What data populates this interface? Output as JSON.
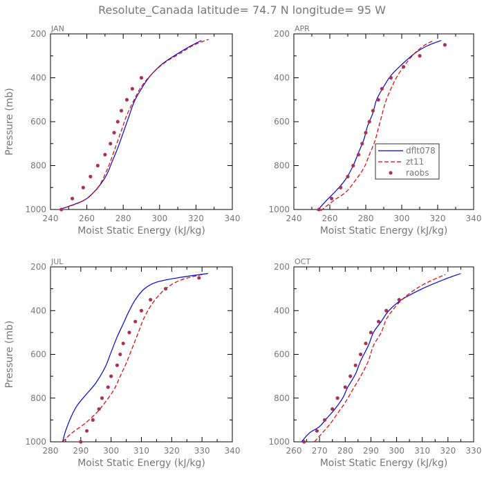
{
  "title": "Resolute_Canada  latitude= 74.7 N longitude= 95 W",
  "legend": [
    {
      "key": "model",
      "name": "dflt078",
      "color": "#0000dd",
      "style": "solid"
    },
    {
      "key": "exp",
      "name": "zt11",
      "color": "#dd0000",
      "style": "dashed"
    },
    {
      "key": "obs",
      "name": "raobs",
      "color": "#aa3355",
      "style": "dots"
    }
  ],
  "chart_data": [
    {
      "type": "line",
      "panel": "JAN",
      "xlabel": "Moist Static Energy (kJ/kg)",
      "ylabel": "Pressure (mb)",
      "xlim": [
        240,
        340
      ],
      "ylim": [
        200,
        1000
      ],
      "y_inverted": true,
      "xticks": [
        240,
        260,
        280,
        300,
        320,
        340
      ],
      "yticks": [
        200,
        400,
        600,
        800,
        1000
      ],
      "series": [
        {
          "key": "model",
          "name": "dflt078",
          "points": [
            [
              245,
              1000
            ],
            [
              258,
              960
            ],
            [
              264,
              920
            ],
            [
              268,
              880
            ],
            [
              271,
              840
            ],
            [
              274,
              780
            ],
            [
              277,
              720
            ],
            [
              280,
              650
            ],
            [
              283,
              580
            ],
            [
              286,
              510
            ],
            [
              290,
              450
            ],
            [
              295,
              390
            ],
            [
              301,
              340
            ],
            [
              308,
              300
            ],
            [
              316,
              260
            ],
            [
              323,
              230
            ]
          ]
        },
        {
          "key": "exp",
          "name": "zt11",
          "points": [
            [
              245,
              1000
            ],
            [
              258,
              960
            ],
            [
              266,
              900
            ],
            [
              270,
              840
            ],
            [
              273,
              780
            ],
            [
              276,
              710
            ],
            [
              279,
              640
            ],
            [
              282,
              570
            ],
            [
              286,
              500
            ],
            [
              290,
              440
            ],
            [
              296,
              380
            ],
            [
              303,
              330
            ],
            [
              311,
              290
            ],
            [
              319,
              250
            ],
            [
              327,
              225
            ]
          ]
        },
        {
          "key": "obs",
          "name": "raobs",
          "points": [
            [
              246,
              1000
            ],
            [
              252,
              950
            ],
            [
              258,
              900
            ],
            [
              262,
              850
            ],
            [
              266,
              800
            ],
            [
              270,
              750
            ],
            [
              273,
              700
            ],
            [
              275,
              650
            ],
            [
              277,
              600
            ],
            [
              279,
              550
            ],
            [
              282,
              500
            ],
            [
              285,
              450
            ],
            [
              290,
              400
            ]
          ]
        }
      ]
    },
    {
      "type": "line",
      "panel": "APR",
      "xlabel": "Moist Static Energy (kJ/kg)",
      "ylabel": "",
      "xlim": [
        240,
        340
      ],
      "ylim": [
        200,
        1000
      ],
      "y_inverted": true,
      "xticks": [
        240,
        260,
        280,
        300,
        320,
        340
      ],
      "yticks": [
        200,
        400,
        600,
        800,
        1000
      ],
      "series": [
        {
          "key": "model",
          "name": "dflt078",
          "points": [
            [
              253,
              1005
            ],
            [
              258,
              960
            ],
            [
              264,
              910
            ],
            [
              269,
              860
            ],
            [
              273,
              800
            ],
            [
              276,
              740
            ],
            [
              279,
              680
            ],
            [
              281,
              620
            ],
            [
              284,
              560
            ],
            [
              286,
              500
            ],
            [
              290,
              440
            ],
            [
              294,
              390
            ],
            [
              300,
              340
            ],
            [
              307,
              290
            ],
            [
              314,
              255
            ],
            [
              322,
              230
            ]
          ]
        },
        {
          "key": "exp",
          "name": "zt11",
          "points": [
            [
              255,
              1005
            ],
            [
              262,
              960
            ],
            [
              269,
              920
            ],
            [
              274,
              870
            ],
            [
              279,
              810
            ],
            [
              282,
              750
            ],
            [
              285,
              690
            ],
            [
              287,
              630
            ],
            [
              289,
              570
            ],
            [
              291,
              510
            ],
            [
              294,
              450
            ],
            [
              297,
              400
            ],
            [
              301,
              350
            ],
            [
              307,
              290
            ],
            [
              313,
              250
            ],
            [
              318,
              230
            ]
          ]
        },
        {
          "key": "obs",
          "name": "raobs",
          "points": [
            [
              254,
              1000
            ],
            [
              261,
              950
            ],
            [
              266,
              900
            ],
            [
              270,
              850
            ],
            [
              273,
              800
            ],
            [
              276,
              750
            ],
            [
              278,
              700
            ],
            [
              280,
              650
            ],
            [
              282,
              600
            ],
            [
              284,
              550
            ],
            [
              287,
              500
            ],
            [
              289,
              450
            ],
            [
              294,
              400
            ],
            [
              301,
              350
            ],
            [
              310,
              300
            ],
            [
              324,
              250
            ]
          ]
        }
      ]
    },
    {
      "type": "line",
      "panel": "JUL",
      "xlabel": "Moist Static Energy (kJ/kg)",
      "ylabel": "Pressure (mb)",
      "xlim": [
        280,
        340
      ],
      "ylim": [
        200,
        1000
      ],
      "y_inverted": true,
      "xticks": [
        280,
        290,
        300,
        310,
        320,
        330,
        340
      ],
      "yticks": [
        200,
        400,
        600,
        800,
        1000
      ],
      "series": [
        {
          "key": "model",
          "name": "dflt078",
          "points": [
            [
              284,
              1000
            ],
            [
              285,
              950
            ],
            [
              287,
              880
            ],
            [
              289,
              830
            ],
            [
              292,
              780
            ],
            [
              295,
              730
            ],
            [
              298,
              660
            ],
            [
              300,
              590
            ],
            [
              302,
              520
            ],
            [
              304,
              460
            ],
            [
              306,
              400
            ],
            [
              308,
              350
            ],
            [
              311,
              300
            ],
            [
              315,
              270
            ],
            [
              322,
              250
            ],
            [
              332,
              230
            ]
          ]
        },
        {
          "key": "exp",
          "name": "zt11",
          "points": [
            [
              284,
              1000
            ],
            [
              287,
              960
            ],
            [
              291,
              920
            ],
            [
              295,
              870
            ],
            [
              298,
              820
            ],
            [
              301,
              760
            ],
            [
              303,
              700
            ],
            [
              305,
              640
            ],
            [
              307,
              570
            ],
            [
              309,
              500
            ],
            [
              311,
              430
            ],
            [
              314,
              360
            ],
            [
              318,
              300
            ],
            [
              323,
              260
            ],
            [
              330,
              235
            ]
          ]
        },
        {
          "key": "obs",
          "name": "raobs",
          "points": [
            [
              290,
              1000
            ],
            [
              292,
              950
            ],
            [
              294,
              900
            ],
            [
              296,
              850
            ],
            [
              297,
              800
            ],
            [
              299,
              750
            ],
            [
              300,
              700
            ],
            [
              302,
              650
            ],
            [
              303,
              600
            ],
            [
              304,
              550
            ],
            [
              306,
              500
            ],
            [
              308,
              450
            ],
            [
              310,
              400
            ],
            [
              313,
              350
            ],
            [
              318,
              300
            ],
            [
              329,
              250
            ]
          ]
        }
      ]
    },
    {
      "type": "line",
      "panel": "OCT",
      "xlabel": "Moist Static Energy (kJ/kg)",
      "ylabel": "",
      "xlim": [
        260,
        330
      ],
      "ylim": [
        200,
        1000
      ],
      "y_inverted": true,
      "xticks": [
        260,
        270,
        280,
        290,
        300,
        310,
        320,
        330
      ],
      "yticks": [
        200,
        400,
        600,
        800,
        1000
      ],
      "series": [
        {
          "key": "model",
          "name": "dflt078",
          "points": [
            [
              263,
              1000
            ],
            [
              266,
              960
            ],
            [
              270,
              930
            ],
            [
              273,
              890
            ],
            [
              276,
              850
            ],
            [
              279,
              800
            ],
            [
              281,
              750
            ],
            [
              284,
              690
            ],
            [
              286,
              630
            ],
            [
              289,
              560
            ],
            [
              291,
              500
            ],
            [
              294,
              450
            ],
            [
              297,
              400
            ],
            [
              302,
              350
            ],
            [
              310,
              300
            ],
            [
              318,
              260
            ],
            [
              325,
              230
            ]
          ]
        },
        {
          "key": "exp",
          "name": "zt11",
          "points": [
            [
              268,
              1000
            ],
            [
              271,
              960
            ],
            [
              274,
              920
            ],
            [
              277,
              870
            ],
            [
              280,
              820
            ],
            [
              283,
              760
            ],
            [
              286,
              700
            ],
            [
              289,
              630
            ],
            [
              291,
              560
            ],
            [
              294,
              500
            ],
            [
              296,
              440
            ],
            [
              299,
              390
            ],
            [
              303,
              340
            ],
            [
              309,
              290
            ],
            [
              314,
              260
            ],
            [
              319,
              235
            ]
          ]
        },
        {
          "key": "obs",
          "name": "raobs",
          "points": [
            [
              264,
              1000
            ],
            [
              269,
              950
            ],
            [
              272,
              900
            ],
            [
              275,
              850
            ],
            [
              277,
              800
            ],
            [
              280,
              750
            ],
            [
              282,
              700
            ],
            [
              284,
              650
            ],
            [
              286,
              600
            ],
            [
              288,
              550
            ],
            [
              290,
              500
            ],
            [
              293,
              450
            ],
            [
              296,
              400
            ],
            [
              301,
              350
            ]
          ]
        }
      ]
    }
  ]
}
